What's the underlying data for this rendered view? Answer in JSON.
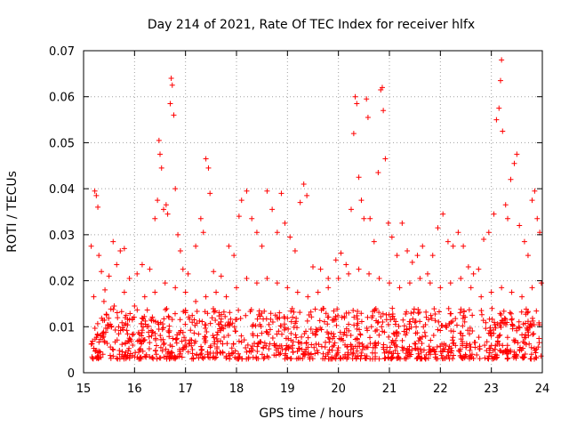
{
  "chart_data": {
    "type": "scatter",
    "title": "Day 214 of 2021, Rate Of TEC Index for receiver hlfx",
    "xlabel": "GPS time / hours",
    "ylabel": "ROTI / TECUs",
    "xlim": [
      15,
      24
    ],
    "ylim": [
      0,
      0.07
    ],
    "xticks": [
      "15",
      "16",
      "17",
      "18",
      "19",
      "20",
      "21",
      "22",
      "23",
      "24"
    ],
    "yticks": [
      "0",
      "0.01",
      "0.02",
      "0.03",
      "0.04",
      "0.05",
      "0.06",
      "0.07"
    ],
    "grid": true,
    "marker": "+",
    "color": "#ff0000",
    "series": [
      {
        "name": "ROTI",
        "points": [
          [
            15.15,
            0.0275
          ],
          [
            15.22,
            0.0395
          ],
          [
            15.25,
            0.0385
          ],
          [
            15.28,
            0.036
          ],
          [
            15.3,
            0.0255
          ],
          [
            15.35,
            0.022
          ],
          [
            15.42,
            0.018
          ],
          [
            15.5,
            0.021
          ],
          [
            15.58,
            0.0285
          ],
          [
            15.65,
            0.0235
          ],
          [
            15.72,
            0.0265
          ],
          [
            15.8,
            0.027
          ],
          [
            15.9,
            0.0205
          ],
          [
            16.05,
            0.0215
          ],
          [
            16.15,
            0.0235
          ],
          [
            16.3,
            0.0225
          ],
          [
            16.4,
            0.0335
          ],
          [
            16.45,
            0.0375
          ],
          [
            16.48,
            0.0505
          ],
          [
            16.5,
            0.0475
          ],
          [
            16.53,
            0.0445
          ],
          [
            16.57,
            0.0355
          ],
          [
            16.62,
            0.0365
          ],
          [
            16.65,
            0.0345
          ],
          [
            16.7,
            0.0585
          ],
          [
            16.72,
            0.064
          ],
          [
            16.74,
            0.0625
          ],
          [
            16.77,
            0.056
          ],
          [
            16.8,
            0.04
          ],
          [
            16.85,
            0.03
          ],
          [
            16.9,
            0.0265
          ],
          [
            16.95,
            0.0225
          ],
          [
            17.05,
            0.0215
          ],
          [
            17.2,
            0.0275
          ],
          [
            17.3,
            0.0335
          ],
          [
            17.35,
            0.0305
          ],
          [
            17.4,
            0.0465
          ],
          [
            17.45,
            0.0445
          ],
          [
            17.48,
            0.039
          ],
          [
            17.55,
            0.022
          ],
          [
            17.7,
            0.021
          ],
          [
            17.85,
            0.0275
          ],
          [
            17.95,
            0.0255
          ],
          [
            18.05,
            0.034
          ],
          [
            18.1,
            0.0375
          ],
          [
            18.2,
            0.0395
          ],
          [
            18.3,
            0.0335
          ],
          [
            18.4,
            0.0305
          ],
          [
            18.5,
            0.0275
          ],
          [
            18.6,
            0.0395
          ],
          [
            18.7,
            0.0355
          ],
          [
            18.8,
            0.0305
          ],
          [
            18.88,
            0.039
          ],
          [
            18.95,
            0.0325
          ],
          [
            19.05,
            0.0295
          ],
          [
            19.15,
            0.0265
          ],
          [
            19.25,
            0.037
          ],
          [
            19.32,
            0.041
          ],
          [
            19.38,
            0.0385
          ],
          [
            19.5,
            0.023
          ],
          [
            19.65,
            0.0225
          ],
          [
            19.8,
            0.0205
          ],
          [
            19.95,
            0.0245
          ],
          [
            20.05,
            0.026
          ],
          [
            20.15,
            0.0235
          ],
          [
            20.25,
            0.0355
          ],
          [
            20.3,
            0.052
          ],
          [
            20.33,
            0.06
          ],
          [
            20.36,
            0.0585
          ],
          [
            20.4,
            0.0425
          ],
          [
            20.45,
            0.0375
          ],
          [
            20.5,
            0.0335
          ],
          [
            20.55,
            0.0595
          ],
          [
            20.58,
            0.0555
          ],
          [
            20.62,
            0.0335
          ],
          [
            20.7,
            0.0285
          ],
          [
            20.78,
            0.0435
          ],
          [
            20.83,
            0.0615
          ],
          [
            20.86,
            0.062
          ],
          [
            20.88,
            0.057
          ],
          [
            20.92,
            0.0465
          ],
          [
            20.98,
            0.0325
          ],
          [
            21.05,
            0.0295
          ],
          [
            21.15,
            0.0255
          ],
          [
            21.25,
            0.0325
          ],
          [
            21.35,
            0.0265
          ],
          [
            21.45,
            0.024
          ],
          [
            21.55,
            0.0255
          ],
          [
            21.65,
            0.0275
          ],
          [
            21.75,
            0.0215
          ],
          [
            21.85,
            0.0255
          ],
          [
            21.95,
            0.0315
          ],
          [
            22.05,
            0.0345
          ],
          [
            22.15,
            0.0285
          ],
          [
            22.25,
            0.0275
          ],
          [
            22.35,
            0.0305
          ],
          [
            22.45,
            0.0275
          ],
          [
            22.55,
            0.023
          ],
          [
            22.65,
            0.0215
          ],
          [
            22.75,
            0.0225
          ],
          [
            22.85,
            0.029
          ],
          [
            22.95,
            0.0305
          ],
          [
            23.05,
            0.0345
          ],
          [
            23.1,
            0.055
          ],
          [
            23.15,
            0.0575
          ],
          [
            23.18,
            0.0635
          ],
          [
            23.2,
            0.068
          ],
          [
            23.22,
            0.0525
          ],
          [
            23.28,
            0.0365
          ],
          [
            23.32,
            0.0335
          ],
          [
            23.38,
            0.042
          ],
          [
            23.45,
            0.0455
          ],
          [
            23.5,
            0.0475
          ],
          [
            23.55,
            0.032
          ],
          [
            23.65,
            0.0285
          ],
          [
            23.72,
            0.0255
          ],
          [
            23.8,
            0.0375
          ],
          [
            23.85,
            0.0395
          ],
          [
            23.9,
            0.0335
          ],
          [
            23.95,
            0.0305
          ],
          [
            15.2,
            0.0165
          ],
          [
            15.4,
            0.0155
          ],
          [
            15.6,
            0.0145
          ],
          [
            15.8,
            0.0175
          ],
          [
            16.0,
            0.0145
          ],
          [
            16.2,
            0.0165
          ],
          [
            16.4,
            0.0175
          ],
          [
            16.6,
            0.0195
          ],
          [
            16.8,
            0.0185
          ],
          [
            17.0,
            0.0175
          ],
          [
            17.2,
            0.0155
          ],
          [
            17.4,
            0.0165
          ],
          [
            17.6,
            0.0175
          ],
          [
            17.8,
            0.0165
          ],
          [
            18.0,
            0.0185
          ],
          [
            18.2,
            0.0205
          ],
          [
            18.4,
            0.0195
          ],
          [
            18.6,
            0.0205
          ],
          [
            18.8,
            0.0195
          ],
          [
            19.0,
            0.0185
          ],
          [
            19.2,
            0.0175
          ],
          [
            19.4,
            0.0165
          ],
          [
            19.6,
            0.0175
          ],
          [
            19.8,
            0.0185
          ],
          [
            20.0,
            0.0205
          ],
          [
            20.2,
            0.0215
          ],
          [
            20.4,
            0.0225
          ],
          [
            20.6,
            0.0215
          ],
          [
            20.8,
            0.0205
          ],
          [
            21.0,
            0.0195
          ],
          [
            21.2,
            0.0185
          ],
          [
            21.4,
            0.0195
          ],
          [
            21.6,
            0.0205
          ],
          [
            21.8,
            0.0195
          ],
          [
            22.0,
            0.0185
          ],
          [
            22.2,
            0.0195
          ],
          [
            22.4,
            0.0205
          ],
          [
            22.6,
            0.0185
          ],
          [
            22.8,
            0.0165
          ],
          [
            23.0,
            0.0175
          ],
          [
            23.2,
            0.0185
          ],
          [
            23.4,
            0.0175
          ],
          [
            23.6,
            0.0165
          ],
          [
            23.8,
            0.0185
          ],
          [
            23.98,
            0.0195
          ]
        ]
      }
    ],
    "dense_band": {
      "x_range": [
        15.15,
        23.98
      ],
      "y_low": 0.003,
      "y_high": 0.014,
      "count": 1200
    }
  }
}
